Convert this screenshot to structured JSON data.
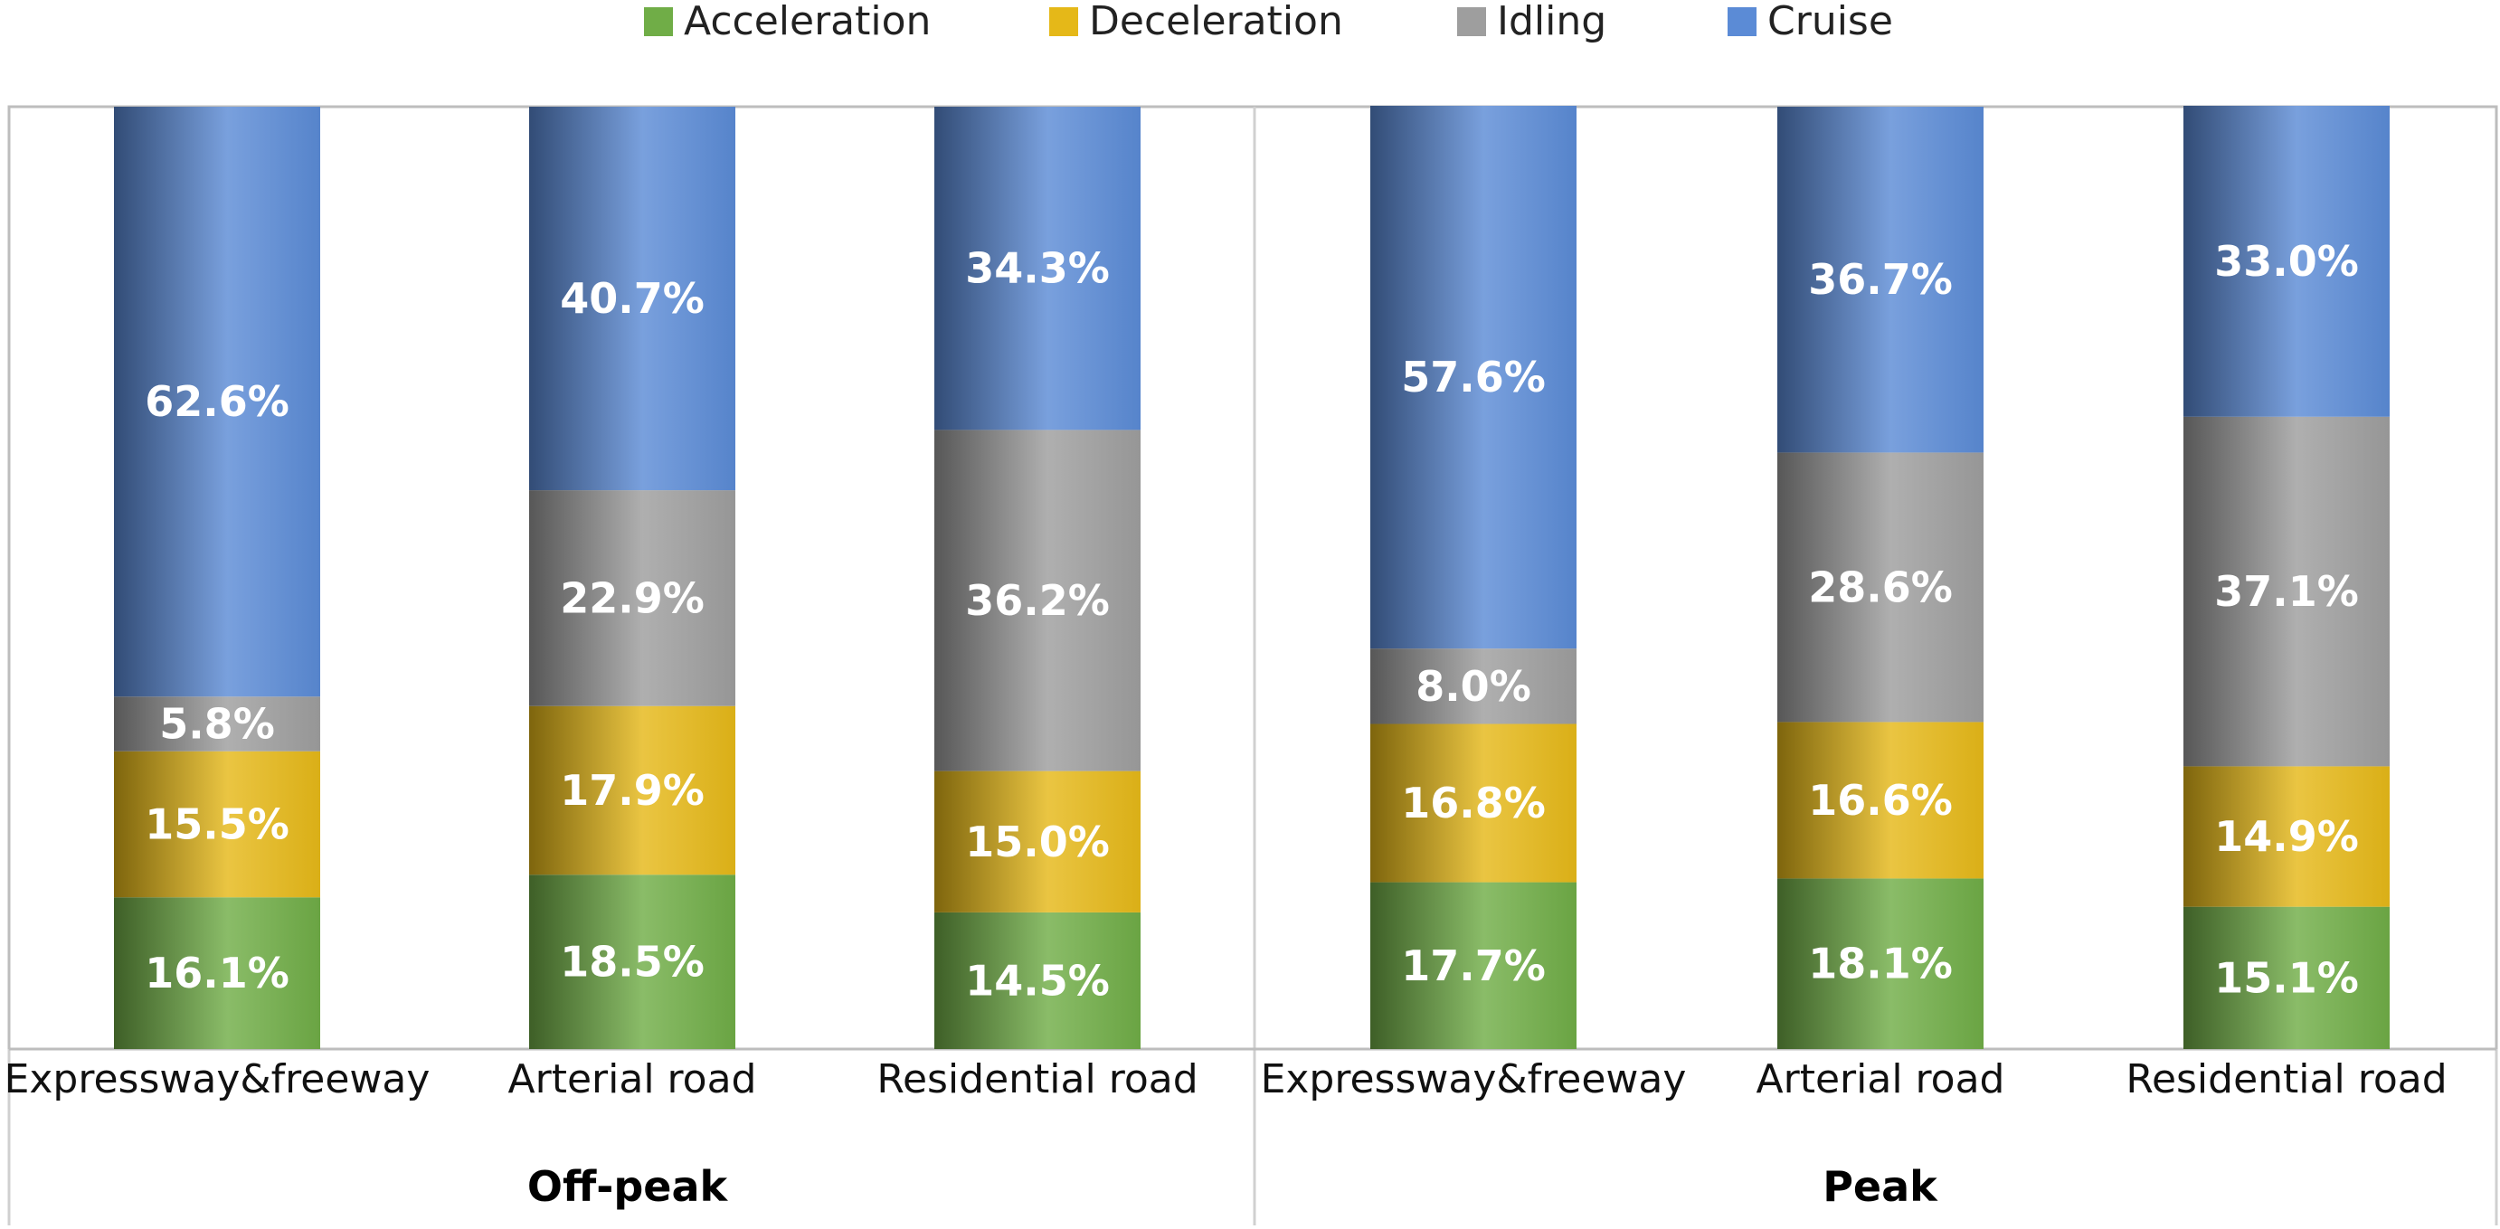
{
  "chart_data": {
    "type": "bar",
    "stacked": true,
    "orientation": "vertical",
    "value_format": "percent",
    "ylim": [
      0,
      100
    ],
    "grid": false,
    "legend_position": "top",
    "series": [
      {
        "name": "Acceleration",
        "color": "#70AD47",
        "values": [
          16.1,
          18.5,
          14.5,
          17.7,
          18.1,
          15.1
        ]
      },
      {
        "name": "Deceleration",
        "color": "#E5B818",
        "values": [
          15.5,
          17.9,
          15.0,
          16.8,
          16.6,
          14.9
        ]
      },
      {
        "name": "Idling",
        "color": "#9E9E9E",
        "values": [
          5.8,
          22.9,
          36.2,
          8.0,
          28.6,
          37.1
        ]
      },
      {
        "name": "Cruise",
        "color": "#5B8BD6",
        "values": [
          62.6,
          40.7,
          34.3,
          57.6,
          36.7,
          33.0
        ]
      }
    ],
    "categories": [
      "Expressway&freeway",
      "Arterial road",
      "Residential road",
      "Expressway&freeway",
      "Arterial road",
      "Residential road"
    ],
    "groups": [
      {
        "label": "Off-peak",
        "categories": [
          0,
          1,
          2
        ]
      },
      {
        "label": "Peak",
        "categories": [
          3,
          4,
          5
        ]
      }
    ]
  }
}
